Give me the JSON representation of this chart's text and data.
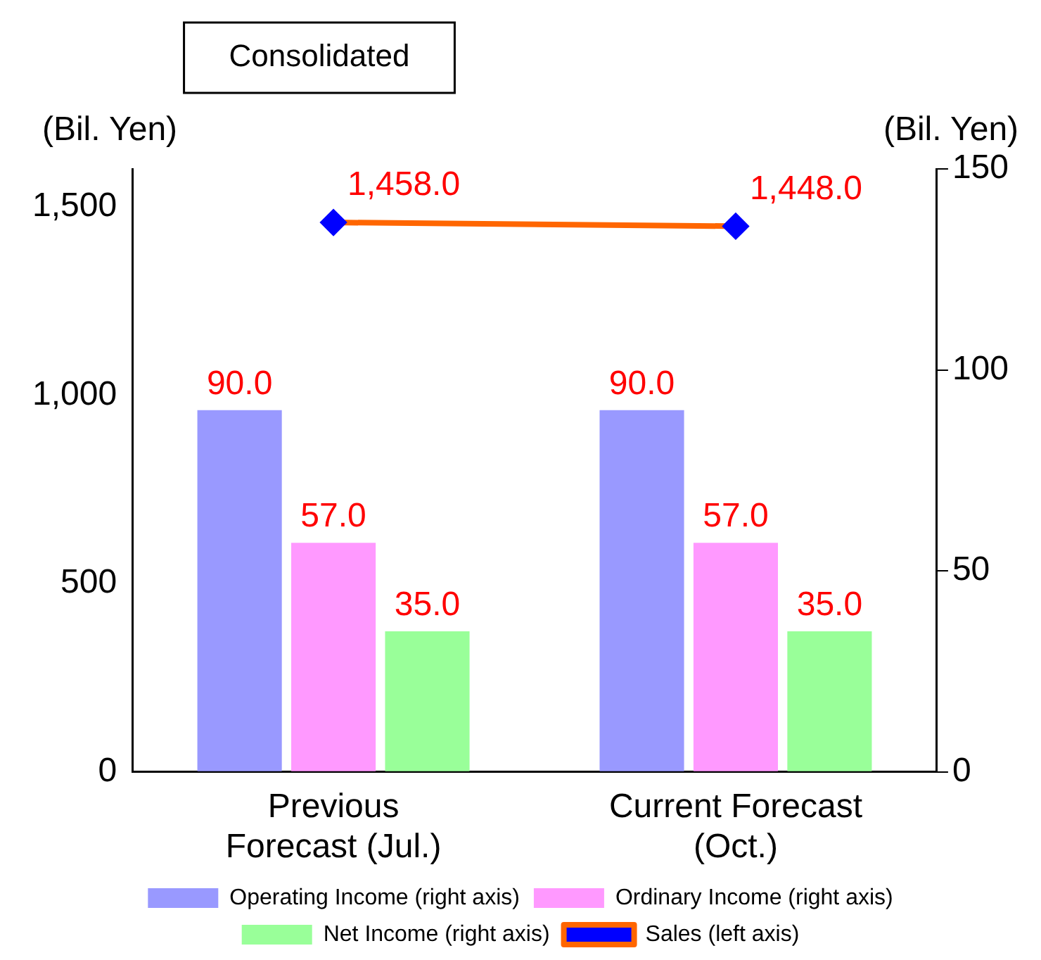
{
  "chart_data": {
    "type": "bar",
    "title": "Consolidated",
    "ylabel": "(Bil. Yen)",
    "y2label": "(Bil. Yen)",
    "categories": [
      "Previous Forecast (Jul.)",
      "Current Forecast (Oct.)"
    ],
    "series": [
      {
        "name": "Operating Income (right axis)",
        "color": "#9999ff",
        "values": [
          90.0,
          90.0
        ],
        "value_labels": [
          "90.0",
          "90.0"
        ],
        "axis": "y2"
      },
      {
        "name": "Ordinary Income (right axis)",
        "color": "#ff99ff",
        "values": [
          57.0,
          57.0
        ],
        "value_labels": [
          "57.0",
          "57.0"
        ],
        "axis": "y2"
      },
      {
        "name": "Net Income (right axis)",
        "color": "#99ff99",
        "values": [
          35.0,
          35.0
        ],
        "value_labels": [
          "35.0",
          "35.0"
        ],
        "axis": "y2"
      },
      {
        "name": "Sales (left axis)",
        "type": "line",
        "color": "#ff6600",
        "values": [
          1458.0,
          1448.0
        ],
        "value_labels": [
          "1,458.0",
          "1,448.0"
        ]
      }
    ],
    "ylim": [
      0,
      1600
    ],
    "yticks": [
      0,
      {
        "value": 500,
        "label": "500"
      },
      {
        "value": 1000,
        "label": "1,000"
      },
      {
        "value": 1500,
        "label": "1,500"
      }
    ],
    "y2lim": [
      0,
      150
    ],
    "y2ticks": [
      0,
      50,
      100,
      150
    ],
    "grid": false,
    "legend": "bottom",
    "marker": "diamond"
  }
}
